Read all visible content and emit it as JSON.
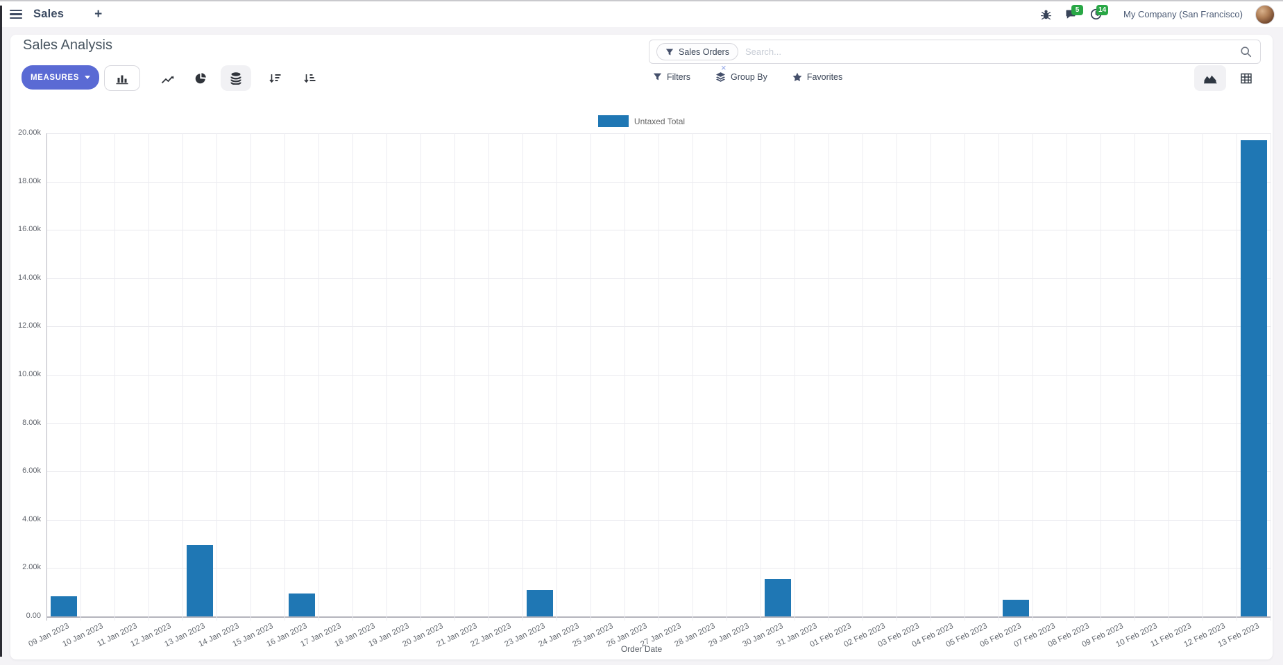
{
  "navbar": {
    "app_name": "Sales",
    "new_tab_plus": "+",
    "message_badge_count": "5",
    "activity_badge_count": "14",
    "company_name": "My Company (San Francisco)"
  },
  "control_panel": {
    "title": "Sales Analysis",
    "measures_button": "MEASURES",
    "search": {
      "facet_label": "Sales Orders",
      "facet_remove_glyph": "×",
      "placeholder": "Search..."
    },
    "menus": {
      "filters": "Filters",
      "group_by": "Group By",
      "favorites": "Favorites"
    }
  },
  "colors": {
    "bar_blue": "#1f77b4",
    "measures_button_bg": "#5a6ad4",
    "badge_green": "#28a745"
  },
  "chart_data": {
    "type": "bar",
    "title": "",
    "xlabel": "Order Date",
    "ylabel": "",
    "ylim": [
      0,
      20000
    ],
    "y_tick_step": 2000,
    "y_tick_labels": [
      "0.00",
      "2.00k",
      "4.00k",
      "6.00k",
      "8.00k",
      "10.00k",
      "12.00k",
      "14.00k",
      "16.00k",
      "18.00k",
      "20.00k"
    ],
    "grid": true,
    "legend_position": "top-center",
    "categories": [
      "09 Jan 2023",
      "10 Jan 2023",
      "11 Jan 2023",
      "12 Jan 2023",
      "13 Jan 2023",
      "14 Jan 2023",
      "15 Jan 2023",
      "16 Jan 2023",
      "17 Jan 2023",
      "18 Jan 2023",
      "19 Jan 2023",
      "20 Jan 2023",
      "21 Jan 2023",
      "22 Jan 2023",
      "23 Jan 2023",
      "24 Jan 2023",
      "25 Jan 2023",
      "26 Jan 2023",
      "27 Jan 2023",
      "28 Jan 2023",
      "29 Jan 2023",
      "30 Jan 2023",
      "31 Jan 2023",
      "01 Feb 2023",
      "02 Feb 2023",
      "03 Feb 2023",
      "04 Feb 2023",
      "05 Feb 2023",
      "06 Feb 2023",
      "07 Feb 2023",
      "08 Feb 2023",
      "09 Feb 2023",
      "10 Feb 2023",
      "11 Feb 2023",
      "12 Feb 2023",
      "13 Feb 2023"
    ],
    "series": [
      {
        "name": "Untaxed Total",
        "color": "#1f77b4",
        "values": [
          830,
          0,
          0,
          0,
          2950,
          0,
          0,
          950,
          0,
          0,
          0,
          0,
          0,
          0,
          1090,
          0,
          0,
          0,
          0,
          0,
          0,
          1550,
          0,
          0,
          0,
          0,
          0,
          0,
          690,
          0,
          0,
          0,
          0,
          0,
          0,
          19700
        ]
      }
    ]
  }
}
